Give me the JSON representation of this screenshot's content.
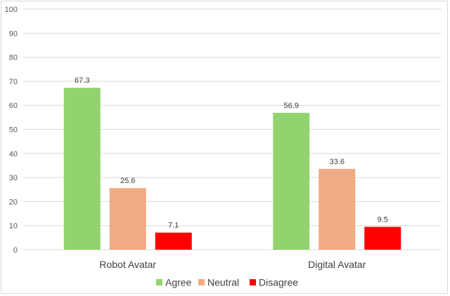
{
  "chart_data": {
    "type": "bar",
    "title": "",
    "xlabel": "",
    "ylabel": "",
    "ylim": [
      0,
      100
    ],
    "yticks": [
      0,
      10,
      20,
      30,
      40,
      50,
      60,
      70,
      80,
      90,
      100
    ],
    "categories": [
      "Robot Avatar",
      "Digital Avatar"
    ],
    "series": [
      {
        "name": "Agree",
        "color": "#92d36e",
        "values": [
          67.3,
          56.9
        ],
        "labels": [
          "67.3",
          "56.9"
        ]
      },
      {
        "name": "Neutral",
        "color": "#f0aa84",
        "values": [
          25.6,
          33.6
        ],
        "labels": [
          "25.6",
          "33.6"
        ]
      },
      {
        "name": "Disagree",
        "color": "#ff0000",
        "values": [
          7.1,
          9.5
        ],
        "labels": [
          "7.1",
          "9.5"
        ]
      }
    ],
    "grid": true,
    "legend": "bottom",
    "data_labels": true
  }
}
